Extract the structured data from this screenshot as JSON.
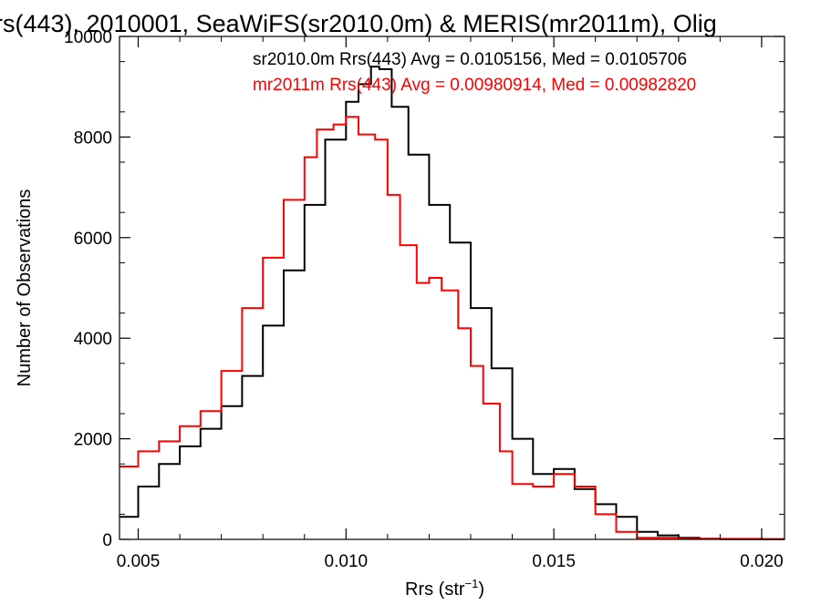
{
  "chart_data": {
    "type": "line",
    "title": "rs(443), 2010001, SeaWiFS(sr2010.0m) & MERIS(mr2011m), Olig",
    "xlabel": "Rrs (str",
    "xlabel_sup": "−1",
    "xlabel_close": ")",
    "ylabel": "Number of Observations",
    "xlim": [
      0.00455,
      0.02055
    ],
    "ylim": [
      0,
      10000
    ],
    "xticks": [
      0.005,
      0.01,
      0.015,
      0.02
    ],
    "xtick_labels": [
      "0.005",
      "0.010",
      "0.015",
      "0.020"
    ],
    "yticks": [
      0,
      2000,
      4000,
      6000,
      8000,
      10000
    ],
    "ytick_labels": [
      "0",
      "2000",
      "4000",
      "6000",
      "8000",
      "10000"
    ],
    "legend_placement": "top",
    "series": [
      {
        "name": "sr2010.0m",
        "legend_text": "sr2010.0m Rrs(443) Avg = 0.0105156, Med = 0.0105706",
        "color": "#000000",
        "x": [
          0.00455,
          0.005,
          0.0055,
          0.006,
          0.0065,
          0.007,
          0.0075,
          0.008,
          0.0085,
          0.009,
          0.0095,
          0.01,
          0.0103,
          0.0106,
          0.0108,
          0.0111,
          0.0115,
          0.012,
          0.0125,
          0.013,
          0.0135,
          0.014,
          0.0145,
          0.015,
          0.0155,
          0.016,
          0.0165,
          0.017,
          0.0175,
          0.018,
          0.0185,
          0.019,
          0.02,
          0.02055
        ],
        "y": [
          450,
          1050,
          1500,
          1850,
          2200,
          2650,
          3250,
          4250,
          5350,
          6650,
          7950,
          8700,
          9050,
          9400,
          9350,
          8600,
          7650,
          6650,
          5900,
          4600,
          3400,
          2000,
          1300,
          1400,
          1000,
          700,
          450,
          150,
          80,
          30,
          15,
          5,
          5,
          5
        ]
      },
      {
        "name": "mr2011m",
        "legend_text": "mr2011m Rrs(443) Avg = 0.00980914, Med = 0.00982820",
        "color": "#ff0000",
        "x": [
          0.00455,
          0.005,
          0.0055,
          0.006,
          0.0065,
          0.007,
          0.0075,
          0.008,
          0.0085,
          0.009,
          0.0093,
          0.0097,
          0.01,
          0.0103,
          0.0107,
          0.011,
          0.0113,
          0.0117,
          0.012,
          0.0123,
          0.0127,
          0.013,
          0.0133,
          0.0137,
          0.014,
          0.0145,
          0.015,
          0.0155,
          0.016,
          0.0165,
          0.017,
          0.018,
          0.02,
          0.02055
        ],
        "y": [
          1450,
          1750,
          1950,
          2250,
          2550,
          3350,
          4600,
          5600,
          6750,
          7600,
          8150,
          8250,
          8400,
          8050,
          7950,
          6850,
          5850,
          5100,
          5200,
          4950,
          4200,
          3450,
          2700,
          1750,
          1100,
          1050,
          1300,
          1050,
          500,
          150,
          30,
          10,
          5,
          5
        ]
      }
    ]
  }
}
